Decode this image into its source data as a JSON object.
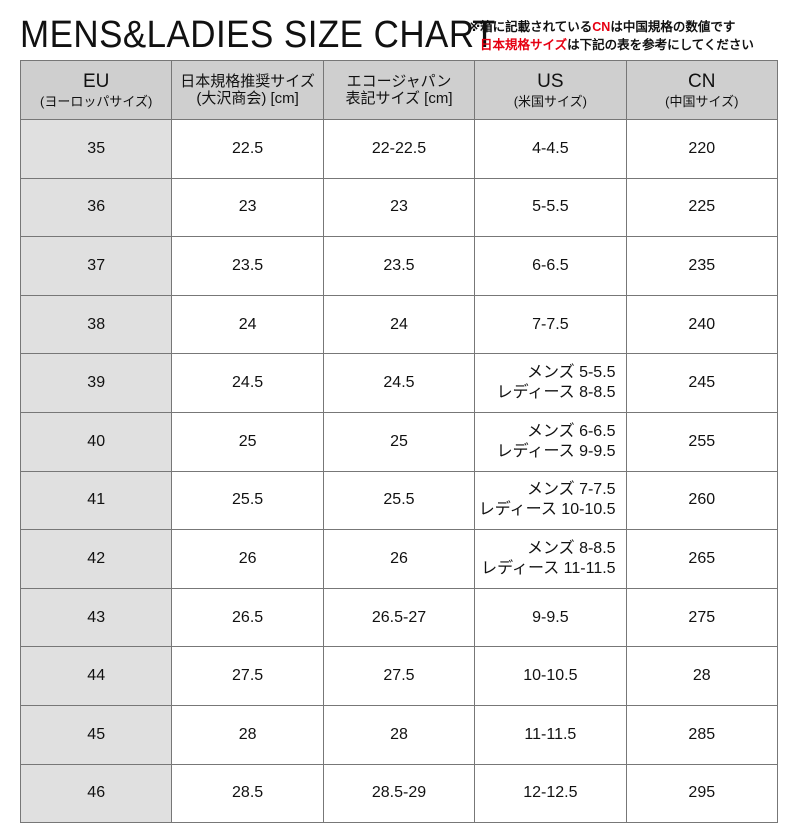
{
  "title": "MENS&LADIES SIZE CHART",
  "note": {
    "line1_pre": "※箱に記載されている",
    "line1_red": "CN",
    "line1_post": "は中国規格の数値です",
    "line2_red": "日本規格サイズ",
    "line2_post": "は下記の表を参考にしてください"
  },
  "headers": [
    {
      "main": "EU",
      "sub": "(ヨーロッパサイズ)"
    },
    {
      "main": "日本規格推奨サイズ",
      "sub": "(大沢商会) [cm]"
    },
    {
      "main": "エコージャパン",
      "sub": "表記サイズ [cm]"
    },
    {
      "main": "US",
      "sub": "(米国サイズ)"
    },
    {
      "main": "CN",
      "sub": "(中国サイズ)"
    }
  ],
  "rows": [
    {
      "eu": "35",
      "jp": "22.5",
      "echo": "22-22.5",
      "us": "4-4.5",
      "us2": "",
      "cn": "220"
    },
    {
      "eu": "36",
      "jp": "23",
      "echo": "23",
      "us": "5-5.5",
      "us2": "",
      "cn": "225"
    },
    {
      "eu": "37",
      "jp": "23.5",
      "echo": "23.5",
      "us": "6-6.5",
      "us2": "",
      "cn": "235"
    },
    {
      "eu": "38",
      "jp": "24",
      "echo": "24",
      "us": "7-7.5",
      "us2": "",
      "cn": "240"
    },
    {
      "eu": "39",
      "jp": "24.5",
      "echo": "24.5",
      "us": "メンズ 5-5.5",
      "us2": "レディース 8-8.5",
      "cn": "245"
    },
    {
      "eu": "40",
      "jp": "25",
      "echo": "25",
      "us": "メンズ 6-6.5",
      "us2": "レディース 9-9.5",
      "cn": "255"
    },
    {
      "eu": "41",
      "jp": "25.5",
      "echo": "25.5",
      "us": "メンズ 7-7.5",
      "us2": "レディース 10-10.5",
      "cn": "260"
    },
    {
      "eu": "42",
      "jp": "26",
      "echo": "26",
      "us": "メンズ 8-8.5",
      "us2": "レディース 11-11.5",
      "cn": "265"
    },
    {
      "eu": "43",
      "jp": "26.5",
      "echo": "26.5-27",
      "us": "9-9.5",
      "us2": "",
      "cn": "275"
    },
    {
      "eu": "44",
      "jp": "27.5",
      "echo": "27.5",
      "us": "10-10.5",
      "us2": "",
      "cn": "28"
    },
    {
      "eu": "45",
      "jp": "28",
      "echo": "28",
      "us": "11-11.5",
      "us2": "",
      "cn": "285"
    },
    {
      "eu": "46",
      "jp": "28.5",
      "echo": "28.5-29",
      "us": "12-12.5",
      "us2": "",
      "cn": "295"
    }
  ]
}
